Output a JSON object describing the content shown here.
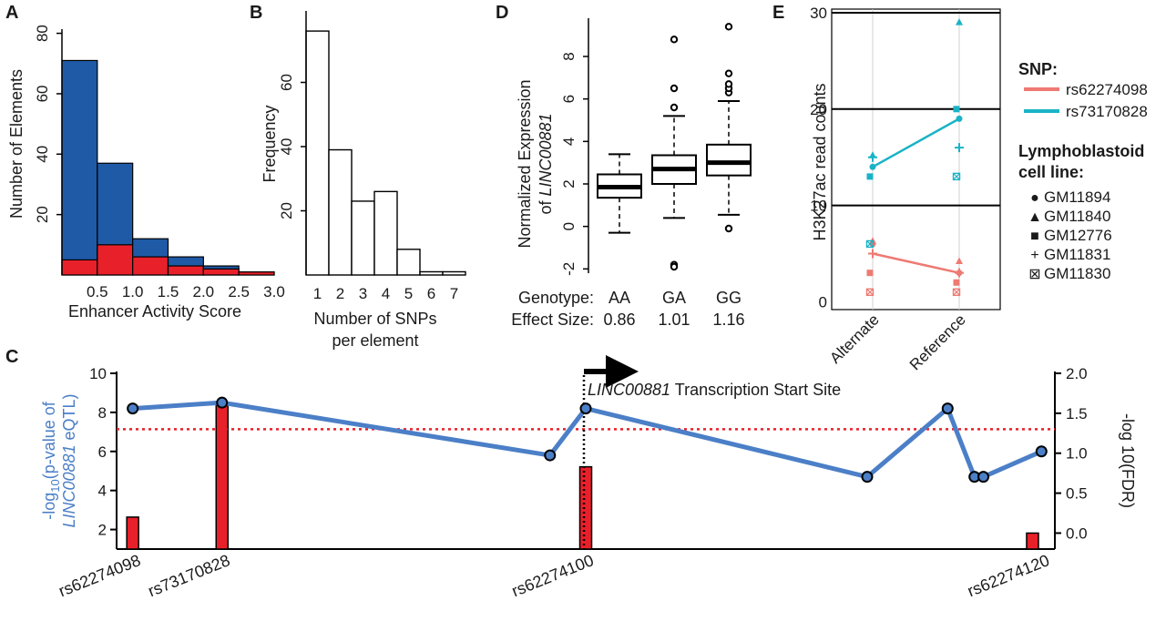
{
  "panels": {
    "a": {
      "letter": "A"
    },
    "b": {
      "letter": "B"
    },
    "c": {
      "letter": "C"
    },
    "d": {
      "letter": "D"
    },
    "e": {
      "letter": "E"
    }
  },
  "colors": {
    "blue_bar": "#1f5aa6",
    "red_bar": "#e8202a",
    "eqtl_line": "#4b7fc7",
    "fdr_red": "#e8202a",
    "snp1_salmon": "#ee7a73",
    "snp2_teal": "#19b3c6"
  },
  "chart_data": [
    {
      "panel": "A",
      "type": "bar",
      "xlabel": "Enhancer Activity Score",
      "ylabel": "Number of Elements",
      "x_ticks": [
        "0.5",
        "1.0",
        "1.5",
        "2.0",
        "2.5",
        "3.0"
      ],
      "y_ticks": [
        "20",
        "40",
        "60",
        "80"
      ],
      "xlim": [
        0,
        3.0
      ],
      "ylim": [
        0,
        85
      ],
      "bin_edges": [
        0,
        0.5,
        1.0,
        1.5,
        2.0,
        2.5,
        3.0
      ],
      "series": [
        {
          "values": [
            71,
            37,
            12,
            6,
            3,
            1
          ]
        },
        {
          "values": [
            5,
            10,
            6,
            3,
            2,
            1
          ]
        }
      ]
    },
    {
      "panel": "B",
      "type": "bar",
      "xlabel": "Number of SNPs per element",
      "xlabel_lines": [
        "Number of SNPs",
        "per element"
      ],
      "ylabel": "Frequency",
      "categories": [
        "1",
        "2",
        "3",
        "4",
        "5",
        "6",
        "7"
      ],
      "values": [
        76,
        39,
        23,
        26,
        8,
        1,
        1
      ],
      "y_ticks": [
        "20",
        "40",
        "60"
      ],
      "ylim": [
        0,
        80
      ]
    },
    {
      "panel": "D",
      "type": "box",
      "ylabel_line1": "Normalized Expression",
      "ylabel_line2_prefix": "of ",
      "ylabel_gene": "LINC00881",
      "y_ticks": [
        "-2",
        "0",
        "2",
        "4",
        "6",
        "8"
      ],
      "ylim": [
        -2.2,
        9.8
      ],
      "row_labels": [
        "Genotype:",
        "Effect Size:"
      ],
      "groups": [
        {
          "genotype": "AA",
          "effect_size": "0.86",
          "q1": 1.35,
          "median": 1.85,
          "q3": 2.45,
          "whisker_low": -0.3,
          "whisker_high": 3.4,
          "outliers": []
        },
        {
          "genotype": "GA",
          "effect_size": "1.01",
          "q1": 2.0,
          "median": 2.7,
          "q3": 3.35,
          "whisker_low": 0.4,
          "whisker_high": 5.2,
          "outliers": [
            5.6,
            6.5,
            8.8,
            -1.8,
            -1.9
          ]
        },
        {
          "genotype": "GG",
          "effect_size": "1.16",
          "q1": 2.4,
          "median": 3.0,
          "q3": 3.85,
          "whisker_low": 0.55,
          "whisker_high": 5.9,
          "outliers": [
            6.3,
            6.5,
            6.7,
            7.2,
            9.4,
            -0.1
          ]
        }
      ]
    },
    {
      "panel": "E",
      "type": "scatter",
      "ylabel": "H3K27ac read counts",
      "categories": [
        "Alternate",
        "Reference"
      ],
      "y_ticks": [
        "0",
        "10",
        "20",
        "30"
      ],
      "ylim": [
        -1,
        30
      ],
      "hlines": [
        10,
        20,
        30
      ],
      "legend": {
        "snp_title": "SNP:",
        "snps": [
          "rs62274098",
          "rs73170828"
        ],
        "cell_title_1": "Lymphoblastoid",
        "cell_title_2": "cell line:",
        "cell_lines": [
          {
            "symbol": "●",
            "name": "GM11894",
            "marker": "circle"
          },
          {
            "symbol": "▲",
            "name": "GM11840",
            "marker": "triangle"
          },
          {
            "symbol": "■",
            "name": "GM12776",
            "marker": "square"
          },
          {
            "symbol": "+",
            "name": "GM11831",
            "marker": "plus"
          },
          {
            "symbol": "⊠",
            "name": "GM11830",
            "marker": "boxx"
          }
        ]
      },
      "series": [
        {
          "name": "rs62274098",
          "mean": [
            5,
            3
          ],
          "points": [
            {
              "cat": 0,
              "marker": "circle",
              "y": 6
            },
            {
              "cat": 0,
              "marker": "triangle",
              "y": 6.3
            },
            {
              "cat": 0,
              "marker": "square",
              "y": 3
            },
            {
              "cat": 0,
              "marker": "plus",
              "y": 5
            },
            {
              "cat": 0,
              "marker": "boxx",
              "y": 1
            },
            {
              "cat": 1,
              "marker": "circle",
              "y": 3
            },
            {
              "cat": 1,
              "marker": "triangle",
              "y": 4.2
            },
            {
              "cat": 1,
              "marker": "square",
              "y": 2
            },
            {
              "cat": 1,
              "marker": "plus",
              "y": 3
            },
            {
              "cat": 1,
              "marker": "boxx",
              "y": 1
            }
          ]
        },
        {
          "name": "rs73170828",
          "mean": [
            14,
            19
          ],
          "points": [
            {
              "cat": 0,
              "marker": "circle",
              "y": 14
            },
            {
              "cat": 0,
              "marker": "triangle",
              "y": 15.2
            },
            {
              "cat": 0,
              "marker": "square",
              "y": 13
            },
            {
              "cat": 0,
              "marker": "plus",
              "y": 15
            },
            {
              "cat": 0,
              "marker": "boxx",
              "y": 6
            },
            {
              "cat": 1,
              "marker": "circle",
              "y": 19
            },
            {
              "cat": 1,
              "marker": "triangle",
              "y": 29
            },
            {
              "cat": 1,
              "marker": "square",
              "y": 20
            },
            {
              "cat": 1,
              "marker": "plus",
              "y": 16
            },
            {
              "cat": 1,
              "marker": "boxx",
              "y": 13
            }
          ]
        }
      ]
    },
    {
      "panel": "C",
      "type": "line",
      "ylabel_left_prefix": "-log",
      "ylabel_left_sub": "10",
      "ylabel_left_suffix": "(p-value of",
      "ylabel_left_gene": "LINC00881",
      "ylabel_left_end": " eQTL)",
      "ylabel_right": "-log 10(FDR)",
      "y_ticks_left": [
        "2",
        "4",
        "6",
        "8",
        "10"
      ],
      "y_ticks_right": [
        "0.0",
        "0.5",
        "1.0",
        "1.5",
        "2.0"
      ],
      "ylim_left": [
        1.0,
        10.0
      ],
      "ylim_right": [
        -0.2,
        2.0
      ],
      "threshold_fdr": 1.3,
      "tss_gene": "LINC00881",
      "tss_label": " Transcription Start Site",
      "snp_labels": [
        {
          "name": "rs62274098",
          "index": 0
        },
        {
          "name": "rs73170828",
          "index": 1
        },
        {
          "name": "rs62274100",
          "index": 3
        },
        {
          "name": "rs62274120",
          "index": 8
        }
      ],
      "series": [
        {
          "name": "eQTL",
          "points": [
            {
              "x": 0.3,
              "y": 8.2
            },
            {
              "x": 10.3,
              "y": 8.5
            },
            {
              "x": 47.0,
              "y": 5.8
            },
            {
              "x": 51.0,
              "y": 8.2
            },
            {
              "x": 82.5,
              "y": 4.7
            },
            {
              "x": 91.5,
              "y": 8.2
            },
            {
              "x": 94.5,
              "y": 4.7
            },
            {
              "x": 95.5,
              "y": 4.7
            },
            {
              "x": 102.0,
              "y": 6.0
            }
          ]
        },
        {
          "name": "FDR",
          "bars": [
            {
              "x": 0.3,
              "value": 0.2
            },
            {
              "x": 10.3,
              "value": 1.63
            },
            {
              "x": 51.0,
              "value": 0.83
            },
            {
              "x": 101.0,
              "value": 0.0
            }
          ]
        }
      ],
      "xlim": [
        -1.5,
        103.5
      ]
    }
  ]
}
